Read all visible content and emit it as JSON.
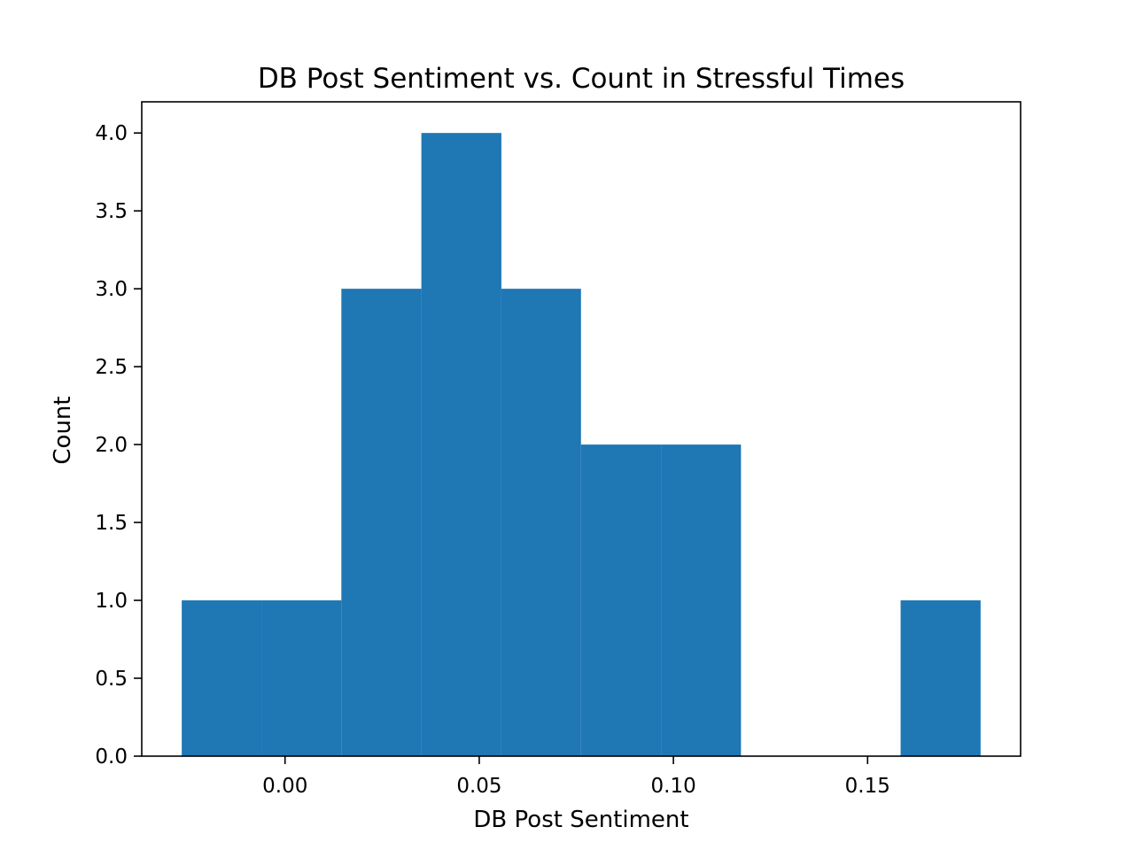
{
  "chart_data": {
    "type": "bar",
    "title": "DB Post Sentiment vs. Count in Stressful Times",
    "xlabel": "DB Post Sentiment",
    "ylabel": "Count",
    "bin_edges": [
      -0.0266,
      -0.006,
      0.0145,
      0.0351,
      0.0557,
      0.0762,
      0.0968,
      0.1174,
      0.1379,
      0.1585,
      0.1791
    ],
    "values": [
      1,
      1,
      3,
      4,
      3,
      2,
      2,
      0,
      0,
      1
    ],
    "xlim": [
      -0.0369,
      0.1894
    ],
    "ylim": [
      0,
      4.2
    ],
    "xticks": [
      0.0,
      0.05,
      0.1,
      0.15
    ],
    "xtick_labels": [
      "0.00",
      "0.05",
      "0.10",
      "0.15"
    ],
    "yticks": [
      0.0,
      0.5,
      1.0,
      1.5,
      2.0,
      2.5,
      3.0,
      3.5,
      4.0
    ],
    "ytick_labels": [
      "0.0",
      "0.5",
      "1.0",
      "1.5",
      "2.0",
      "2.5",
      "3.0",
      "3.5",
      "4.0"
    ],
    "grid": false,
    "bar_color": "#1f77b4"
  }
}
